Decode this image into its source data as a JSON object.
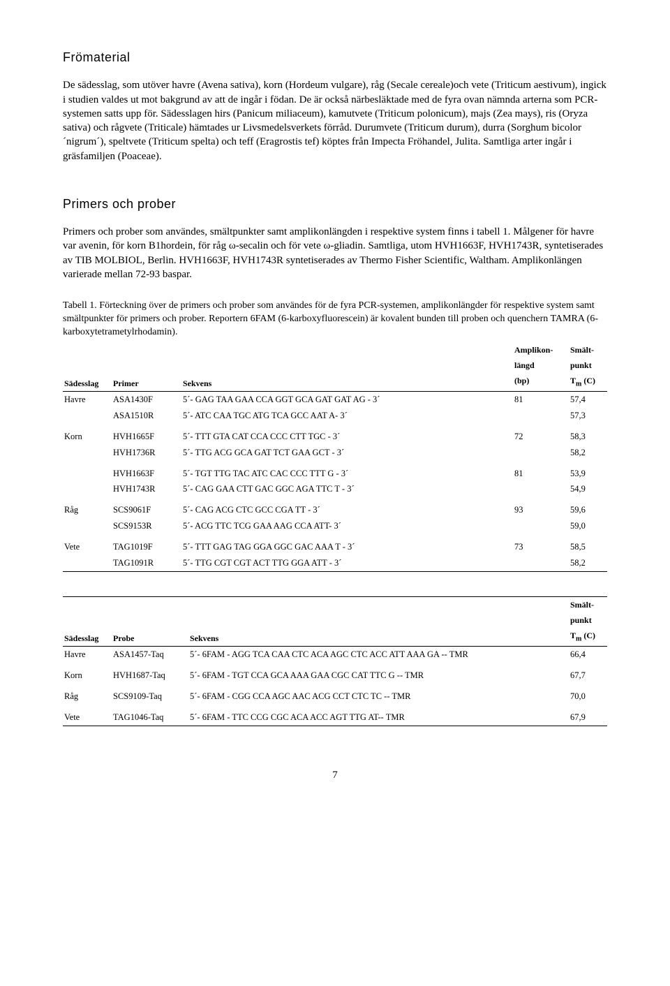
{
  "section_fromaterial": {
    "heading": "Frömaterial",
    "paragraph": "De sädesslag, som utöver havre (Avena sativa), korn (Hordeum vulgare), råg (Secale cereale)och vete (Triticum aestivum), ingick i studien valdes ut mot bakgrund av att de ingår i födan. De är också närbesläktade med de fyra ovan nämnda arterna som PCR-systemen satts upp för. Sädesslagen hirs (Panicum miliaceum), kamutvete (Triticum polonicum), majs (Zea mays), ris (Oryza sativa) och rågvete (Triticale) hämtades ur Livsmedelsverkets förråd. Durumvete (Triticum durum), durra (Sorghum bicolor ´nigrum´), speltvete (Triticum spelta) och teff (Eragrostis tef) köptes från Impecta Fröhandel, Julita. Samtliga arter ingår i gräsfamiljen (Poaceae)."
  },
  "section_primers": {
    "heading": "Primers och prober",
    "paragraph": "Primers och prober som användes, smältpunkter samt amplikonlängden i respektive system finns i tabell 1. Målgener för havre var avenin, för korn B1hordein, för råg ω-secalin och för vete ω-gliadin. Samtliga, utom HVH1663F, HVH1743R, syntetiserades av TIB MOLBIOL, Berlin. HVH1663F, HVH1743R syntetiserades av Thermo Fisher Scientific, Waltham. Amplikonlängen varierade mellan 72-93 baspar."
  },
  "table1": {
    "caption": "Tabell 1. Förteckning över de primers och prober som användes för de fyra PCR-systemen, amplikonlängder för respektive system samt smältpunkter för primers och prober. Reportern 6FAM (6-karboxyfluorescein) är kovalent bunden till proben och quenchern TAMRA (6-karboxytetrametylrhodamin).",
    "headers": {
      "grain": "Sädesslag",
      "primer": "Primer",
      "seq": "Sekvens",
      "amp1": "Amplikon-",
      "amp2": "längd",
      "amp3": "(bp)",
      "tm1": "Smält-",
      "tm2": "punkt",
      "tm3_prefix": "T",
      "tm3_sub": "m",
      "tm3_suffix": " (C)"
    },
    "rows": [
      {
        "grain": "Havre",
        "primer": "ASA1430F",
        "seq": "5´- GAG TAA GAA CCA GGT GCA GAT GAT AG - 3´",
        "amp": "81",
        "tm": "57,4",
        "grouptop": true
      },
      {
        "grain": "",
        "primer": "ASA1510R",
        "seq": "5´- ATC CAA TGC ATG TCA GCC AAT A- 3´",
        "amp": "",
        "tm": "57,3"
      },
      {
        "grain": "Korn",
        "primer": "HVH1665F",
        "seq": "5´- TTT GTA CAT CCA CCC CTT TGC - 3´",
        "amp": "72",
        "tm": "58,3",
        "grouptop": true
      },
      {
        "grain": "",
        "primer": "HVH1736R",
        "seq": "5´- TTG ACG GCA GAT TCT GAA GCT - 3´",
        "amp": "",
        "tm": "58,2"
      },
      {
        "grain": "",
        "primer": "HVH1663F",
        "seq": "5´- TGT TTG TAC ATC CAC CCC TTT G - 3´",
        "amp": "81",
        "tm": "53,9",
        "grouptop": true
      },
      {
        "grain": "",
        "primer": "HVH1743R",
        "seq": "5´- CAG GAA CTT GAC GGC AGA TTC T - 3´",
        "amp": "",
        "tm": "54,9"
      },
      {
        "grain": "Råg",
        "primer": "SCS9061F",
        "seq": "5´- CAG ACG CTC GCC CGA TT  - 3´",
        "amp": "93",
        "tm": "59,6",
        "grouptop": true
      },
      {
        "grain": "",
        "primer": "SCS9153R",
        "seq": "5´- ACG TTC TCG GAA AAG CCA ATT- 3´",
        "amp": "",
        "tm": "59,0"
      },
      {
        "grain": "Vete",
        "primer": "TAG1019F",
        "seq": "5´- TTT GAG TAG GGA GGC GAC AAA T - 3´",
        "amp": "73",
        "tm": "58,5",
        "grouptop": true
      },
      {
        "grain": "",
        "primer": "TAG1091R",
        "seq": "5´- TTG CGT CGT ACT TTG GGA ATT - 3´",
        "amp": "",
        "tm": "58,2"
      }
    ]
  },
  "table2": {
    "headers": {
      "grain": "Sädesslag",
      "probe": "Probe",
      "seq": "Sekvens",
      "tm1": "Smält-",
      "tm2": "punkt",
      "tm3_prefix": "T",
      "tm3_sub": "m",
      "tm3_suffix": " (C)"
    },
    "rows": [
      {
        "grain": "Havre",
        "probe": "ASA1457-Taq",
        "seq": "5´- 6FAM - AGG TCA CAA CTC ACA AGC CTC ACC ATT AAA GA -- TMR",
        "tm": "66,4"
      },
      {
        "grain": "Korn",
        "probe": "HVH1687-Taq",
        "seq": "5´- 6FAM - TGT CCA GCA AAA GAA CGC CAT TTC G -- TMR",
        "tm": "67,7"
      },
      {
        "grain": "Råg",
        "probe": "SCS9109-Taq",
        "seq": "5´- 6FAM - CGG CCA AGC AAC ACG CCT CTC TC -- TMR",
        "tm": "70,0"
      },
      {
        "grain": "Vete",
        "probe": "TAG1046-Taq",
        "seq": "5´- 6FAM - TTC CCG CGC ACA ACC AGT TTG AT-- TMR",
        "tm": "67,9"
      }
    ]
  },
  "page_number": "7"
}
